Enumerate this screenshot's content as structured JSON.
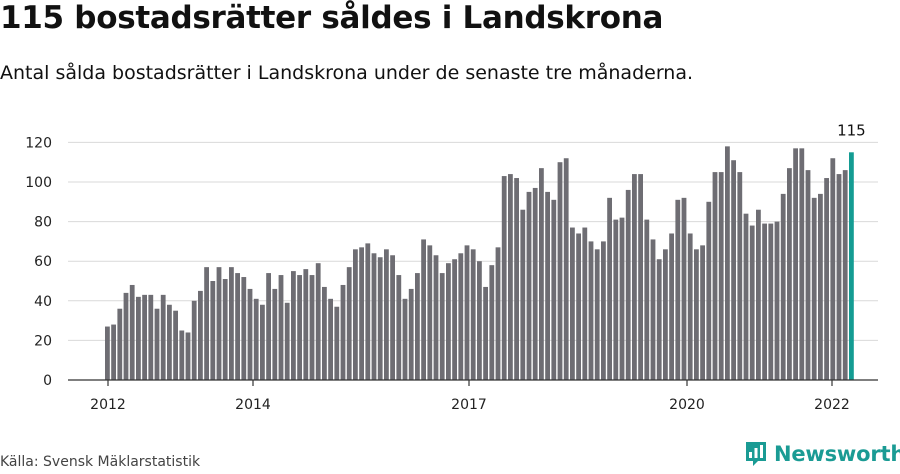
{
  "title": "115 bostadsrätter såldes i Landskrona",
  "subtitle": "Antal sålda bostadsrätter i Landskrona under de senaste tre månaderna.",
  "source": "Källa: Svensk Mäklarstatistik",
  "brand": {
    "name": "Newsworthy",
    "icon": "newsworthy-logo-icon",
    "color": "#1a9b94"
  },
  "colors": {
    "bar": "#6e6d73",
    "highlight": "#149c93",
    "grid": "#d9d9d9",
    "axis": "#333333"
  },
  "chart_data": {
    "type": "bar",
    "x_tick_labels": [
      "2012",
      "2014",
      "2017",
      "2020",
      "2022"
    ],
    "y_tick_labels": [
      "0",
      "20",
      "40",
      "60",
      "80",
      "100",
      "120"
    ],
    "ylim": [
      0,
      125
    ],
    "grid": true,
    "values": [
      27,
      28,
      36,
      44,
      48,
      42,
      43,
      43,
      36,
      43,
      38,
      35,
      25,
      24,
      40,
      45,
      57,
      50,
      57,
      51,
      57,
      54,
      52,
      46,
      41,
      38,
      54,
      46,
      53,
      39,
      55,
      53,
      56,
      53,
      59,
      47,
      41,
      37,
      48,
      57,
      66,
      67,
      69,
      64,
      62,
      66,
      63,
      53,
      41,
      46,
      54,
      71,
      68,
      63,
      54,
      59,
      61,
      64,
      68,
      66,
      60,
      47,
      58,
      67,
      103,
      104,
      102,
      86,
      95,
      97,
      107,
      95,
      91,
      110,
      112,
      77,
      74,
      77,
      70,
      66,
      70,
      92,
      81,
      82,
      96,
      104,
      104,
      81,
      71,
      61,
      66,
      74,
      91,
      92,
      74,
      66,
      68,
      90,
      105,
      105,
      118,
      111,
      105,
      84,
      78,
      86,
      79,
      79,
      80,
      94,
      107,
      117,
      117,
      106,
      92,
      94,
      102,
      112,
      104,
      106,
      115
    ],
    "highlight_last": true,
    "annotation": "115"
  }
}
